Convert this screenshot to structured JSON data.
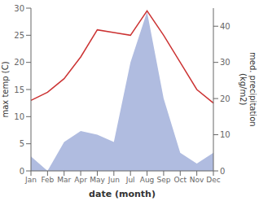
{
  "chart_data": {
    "type": "line",
    "xlabel": "date (month)",
    "ylabel": "max temp (C)",
    "y2label": "med. precipitation\n(kg/m2)",
    "categories": [
      "Jan",
      "Feb",
      "Mar",
      "Apr",
      "May",
      "Jun",
      "Jul",
      "Aug",
      "Sep",
      "Oct",
      "Nov",
      "Dec"
    ],
    "series": [
      {
        "type": "area",
        "axis": "y2",
        "color": "#b0bce0",
        "values": [
          4,
          0,
          8,
          11,
          10,
          8,
          30,
          44,
          20,
          5,
          2,
          5
        ]
      },
      {
        "type": "line",
        "color": "#cc3333",
        "values": [
          13,
          14.5,
          17,
          21,
          26,
          25.5,
          25,
          29.5,
          25,
          20,
          15,
          12.5
        ]
      }
    ],
    "ylim": [
      0,
      30
    ],
    "yticks": [
      0,
      5,
      10,
      15,
      20,
      25,
      30
    ],
    "y2lim": [
      0,
      45
    ],
    "y2ticks": [
      0,
      10,
      20,
      30,
      40
    ],
    "grid": false
  }
}
